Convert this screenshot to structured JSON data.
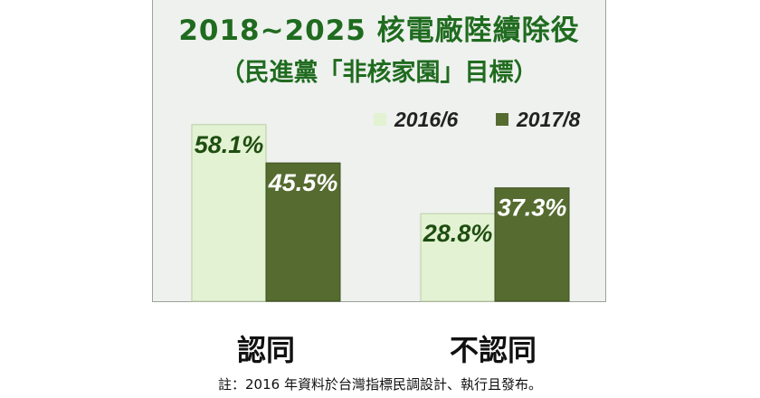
{
  "chart_data": {
    "type": "bar",
    "title": "2018~2025 核電廠陸續除役",
    "subtitle": "（民進黨「非核家園」目標）",
    "categories": [
      "認同",
      "不認同"
    ],
    "series": [
      {
        "name": "2016/6",
        "values": [
          58.1,
          28.8
        ],
        "labels": [
          "58.1%",
          "28.8%"
        ],
        "color": "#e2f2d2"
      },
      {
        "name": "2017/8",
        "values": [
          45.5,
          37.3
        ],
        "labels": [
          "45.5%",
          "37.3%"
        ],
        "color": "#556b2f"
      }
    ],
    "ylim": [
      0,
      80
    ],
    "grid": false,
    "legend": "top-right",
    "xlabel": "",
    "ylabel": ""
  },
  "footnote": "註：2016 年資料於台灣指標民調設計、執行且發布。"
}
